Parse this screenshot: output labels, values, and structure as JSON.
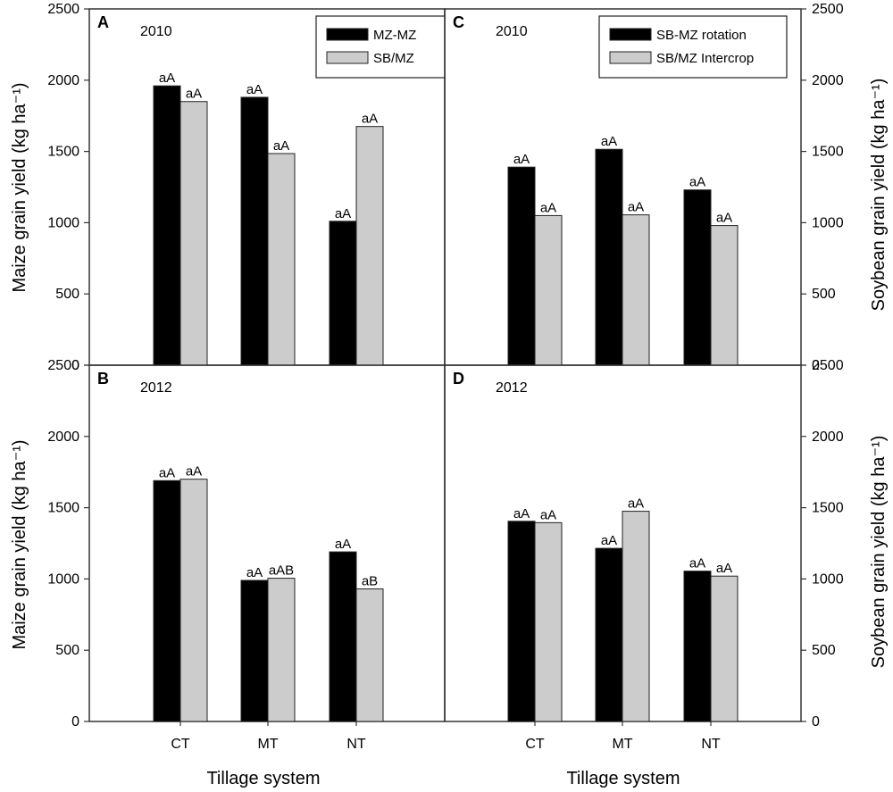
{
  "figure": {
    "ylabel_left": "Maize grain yield (kg ha⁻¹)",
    "ylabel_right": "Soybean grain yield (kg ha⁻¹)",
    "xlabel": "Tillage system",
    "colors": {
      "dark": "#000000",
      "light": "#cccccc"
    }
  },
  "chart_data": [
    {
      "type": "bar",
      "panel": "A",
      "year": "2010",
      "categories": [
        "CT",
        "MT",
        "NT"
      ],
      "series": [
        {
          "name": "MZ-MZ",
          "color": "#000000",
          "values": [
            1960,
            1880,
            1010
          ],
          "labels": [
            "aA",
            "aA",
            "aA"
          ]
        },
        {
          "name": "SB/MZ",
          "color": "#cccccc",
          "values": [
            1850,
            1485,
            1675
          ],
          "labels": [
            "aA",
            "aA",
            "aA"
          ]
        }
      ],
      "ylim": [
        0,
        2500
      ],
      "yticks": [
        0,
        500,
        1000,
        1500,
        2000,
        2500
      ],
      "legend": "top-right"
    },
    {
      "type": "bar",
      "panel": "B",
      "year": "2012",
      "categories": [
        "CT",
        "MT",
        "NT"
      ],
      "series": [
        {
          "color": "#000000",
          "values": [
            1690,
            990,
            1190
          ],
          "labels": [
            "aA",
            "aA",
            "aA"
          ]
        },
        {
          "color": "#cccccc",
          "values": [
            1700,
            1005,
            930
          ],
          "labels": [
            "aA",
            "aAB",
            "aB"
          ]
        }
      ],
      "ylim": [
        0,
        2500
      ],
      "yticks": [
        0,
        500,
        1000,
        1500,
        2000,
        2500
      ]
    },
    {
      "type": "bar",
      "panel": "C",
      "year": "2010",
      "categories": [
        "CT",
        "MT",
        "NT"
      ],
      "series": [
        {
          "name": "SB-MZ rotation",
          "color": "#000000",
          "values": [
            1390,
            1515,
            1230
          ],
          "labels": [
            "aA",
            "aA",
            "aA"
          ]
        },
        {
          "name": "SB/MZ Intercrop",
          "color": "#cccccc",
          "values": [
            1050,
            1055,
            980
          ],
          "labels": [
            "aA",
            "aA",
            "aA"
          ]
        }
      ],
      "ylim": [
        0,
        2500
      ],
      "yticks": [
        0,
        500,
        1000,
        1500,
        2000,
        2500
      ],
      "legend": "top-right"
    },
    {
      "type": "bar",
      "panel": "D",
      "year": "2012",
      "categories": [
        "CT",
        "MT",
        "NT"
      ],
      "series": [
        {
          "color": "#000000",
          "values": [
            1405,
            1215,
            1055
          ],
          "labels": [
            "aA",
            "aA",
            "aA"
          ]
        },
        {
          "color": "#cccccc",
          "values": [
            1395,
            1475,
            1020
          ],
          "labels": [
            "aA",
            "aA",
            "aA"
          ]
        }
      ],
      "ylim": [
        0,
        2500
      ],
      "yticks": [
        0,
        500,
        1000,
        1500,
        2000,
        2500
      ]
    }
  ]
}
